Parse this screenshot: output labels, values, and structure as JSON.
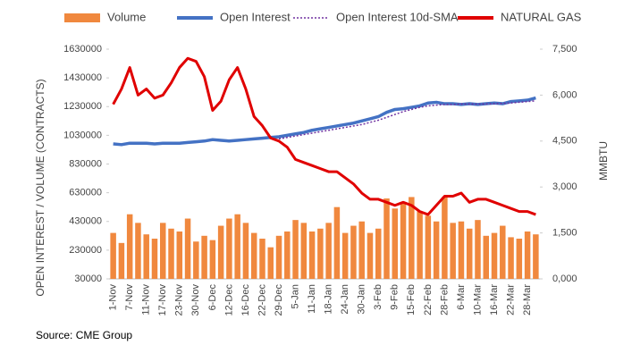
{
  "chart_data": {
    "type": "combo",
    "y_label": "OPEN INTEREST / VOLUME (CONTRACTS)",
    "y2_label": "MMBTU",
    "source": "Source: CME Group",
    "categories": [
      "1-Nov",
      null,
      "7-Nov",
      null,
      "11-Nov",
      null,
      "17-Nov",
      null,
      "23-Nov",
      null,
      "30-Nov",
      null,
      "6-Dec",
      null,
      "12-Dec",
      null,
      "16-Dec",
      null,
      "22-Dec",
      null,
      "29-Dec",
      null,
      "5-Jan",
      null,
      "11-Jan",
      null,
      "18-Jan",
      null,
      "24-Jan",
      null,
      "30-Jan",
      null,
      "3-Feb",
      null,
      "9-Feb",
      null,
      "15-Feb",
      null,
      "22-Feb",
      null,
      "28-Feb",
      null,
      "6-Mar",
      null,
      "10-Mar",
      null,
      "16-Mar",
      null,
      "22-Mar",
      null,
      "28-Mar",
      null
    ],
    "series": [
      {
        "name": "Volume",
        "kind": "bar",
        "color": "#f0883e",
        "values": [
          350000,
          280000,
          480000,
          420000,
          340000,
          310000,
          420000,
          380000,
          360000,
          450000,
          290000,
          330000,
          300000,
          400000,
          450000,
          480000,
          420000,
          350000,
          310000,
          250000,
          330000,
          360000,
          440000,
          420000,
          360000,
          380000,
          420000,
          530000,
          350000,
          400000,
          430000,
          350000,
          380000,
          590000,
          520000,
          560000,
          600000,
          500000,
          470000,
          430000,
          600000,
          420000,
          430000,
          380000,
          440000,
          330000,
          350000,
          400000,
          320000,
          310000,
          360000,
          340000
        ]
      },
      {
        "name": "Open Interest",
        "kind": "line",
        "color": "#4472c4",
        "values": [
          970000,
          965000,
          975000,
          975000,
          975000,
          970000,
          975000,
          975000,
          975000,
          980000,
          985000,
          990000,
          1000000,
          995000,
          990000,
          995000,
          1000000,
          1005000,
          1010000,
          1015000,
          1020000,
          1030000,
          1040000,
          1050000,
          1065000,
          1075000,
          1085000,
          1095000,
          1105000,
          1115000,
          1130000,
          1145000,
          1160000,
          1190000,
          1210000,
          1215000,
          1225000,
          1235000,
          1255000,
          1260000,
          1250000,
          1250000,
          1245000,
          1250000,
          1245000,
          1250000,
          1255000,
          1250000,
          1265000,
          1270000,
          1275000,
          1290000
        ]
      },
      {
        "name": "Open Interest 10d-SMA",
        "kind": "dotted",
        "color": "#7030a0",
        "values": [
          null,
          null,
          null,
          null,
          null,
          null,
          null,
          null,
          null,
          null,
          null,
          null,
          null,
          null,
          null,
          null,
          null,
          null,
          null,
          null,
          1005000,
          1015000,
          1025000,
          1035000,
          1045000,
          1055000,
          1065000,
          1075000,
          1085000,
          1095000,
          1105000,
          1120000,
          1135000,
          1155000,
          1175000,
          1195000,
          1210000,
          1225000,
          1235000,
          1240000,
          1245000,
          1245000,
          1248000,
          1248000,
          1247000,
          1248000,
          1250000,
          1252000,
          1255000,
          1260000,
          1265000,
          1270000
        ]
      },
      {
        "name": "NATURAL GAS",
        "kind": "line",
        "axis": "y2",
        "color": "#e00000",
        "values": [
          5700,
          6200,
          6900,
          6000,
          6200,
          5900,
          6000,
          6400,
          6900,
          7200,
          7100,
          6600,
          5500,
          5800,
          6500,
          6900,
          6200,
          5300,
          5000,
          4600,
          4500,
          4300,
          3900,
          3800,
          3700,
          3600,
          3500,
          3500,
          3300,
          3100,
          2800,
          2600,
          2600,
          2500,
          2400,
          2500,
          2400,
          2200,
          2100,
          2400,
          2700,
          2700,
          2800,
          2500,
          2600,
          2600,
          2500,
          2400,
          2300,
          2200,
          2200,
          2100
        ]
      }
    ],
    "ylim": [
      30000,
      1630000
    ],
    "yticks": [
      30000,
      230000,
      430000,
      630000,
      830000,
      1030000,
      1230000,
      1430000,
      1630000
    ],
    "y2lim": [
      0,
      7500
    ],
    "y2ticks": [
      {
        "value": 0,
        "label": "0,000"
      },
      {
        "value": 1500,
        "label": "1,500"
      },
      {
        "value": 3000,
        "label": "3,000"
      },
      {
        "value": 4500,
        "label": "4,500"
      },
      {
        "value": 6000,
        "label": "6,000"
      },
      {
        "value": 7500,
        "label": "7,500"
      }
    ],
    "legend": "top"
  }
}
